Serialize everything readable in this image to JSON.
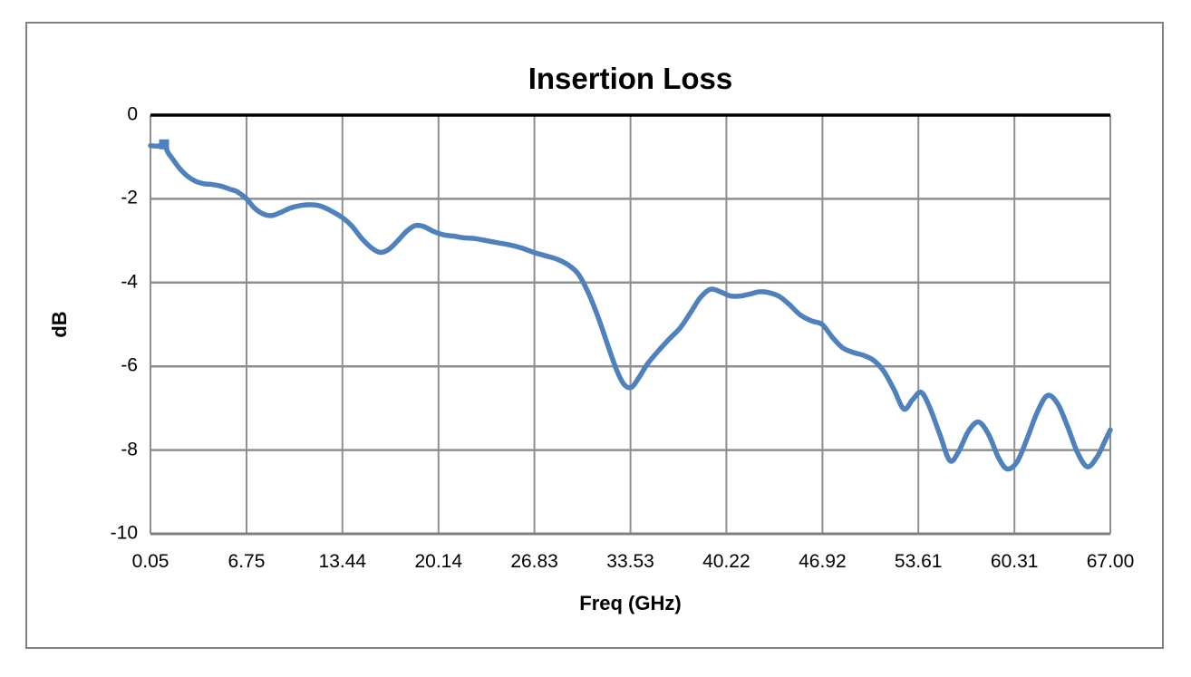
{
  "chart_data": {
    "type": "line",
    "title": "Insertion Loss",
    "xlabel": "Freq (GHz)",
    "ylabel": "dB",
    "xlim": [
      0.05,
      67.0
    ],
    "ylim": [
      -10,
      0
    ],
    "x_ticks": [
      0.05,
      6.75,
      13.44,
      20.14,
      26.83,
      33.53,
      40.22,
      46.92,
      53.61,
      60.31,
      67.0
    ],
    "x_tick_labels": [
      "0.05",
      "6.75",
      "13.44",
      "20.14",
      "26.83",
      "33.53",
      "40.22",
      "46.92",
      "53.61",
      "60.31",
      "67.00"
    ],
    "y_ticks": [
      0,
      -2,
      -4,
      -6,
      -8,
      -10
    ],
    "y_tick_labels": [
      "0",
      "-2",
      "-4",
      "-6",
      "-8",
      "-10"
    ],
    "grid": true,
    "legend": false,
    "series": [
      {
        "name": "Insertion Loss",
        "color": "#4F81BD",
        "line_width": 5.5,
        "start_marker": {
          "f": 1.0,
          "dB": -0.7,
          "size": 11
        },
        "points": [
          [
            0.05,
            -0.73
          ],
          [
            0.5,
            -0.74
          ],
          [
            0.9,
            -0.72
          ],
          [
            1.05,
            -0.68
          ],
          [
            1.25,
            -0.88
          ],
          [
            1.6,
            -1.05
          ],
          [
            2.1,
            -1.28
          ],
          [
            2.6,
            -1.45
          ],
          [
            3.2,
            -1.58
          ],
          [
            3.8,
            -1.64
          ],
          [
            4.4,
            -1.66
          ],
          [
            5.0,
            -1.7
          ],
          [
            5.6,
            -1.77
          ],
          [
            6.1,
            -1.83
          ],
          [
            6.75,
            -2.0
          ],
          [
            7.3,
            -2.22
          ],
          [
            7.9,
            -2.36
          ],
          [
            8.5,
            -2.4
          ],
          [
            9.1,
            -2.33
          ],
          [
            9.8,
            -2.22
          ],
          [
            10.5,
            -2.16
          ],
          [
            11.2,
            -2.14
          ],
          [
            11.9,
            -2.17
          ],
          [
            12.6,
            -2.28
          ],
          [
            13.4,
            -2.44
          ],
          [
            14.1,
            -2.65
          ],
          [
            14.8,
            -2.95
          ],
          [
            15.5,
            -3.18
          ],
          [
            16.1,
            -3.28
          ],
          [
            16.7,
            -3.2
          ],
          [
            17.3,
            -3.0
          ],
          [
            17.9,
            -2.78
          ],
          [
            18.5,
            -2.64
          ],
          [
            19.1,
            -2.66
          ],
          [
            19.8,
            -2.78
          ],
          [
            20.5,
            -2.86
          ],
          [
            21.2,
            -2.89
          ],
          [
            21.9,
            -2.93
          ],
          [
            22.7,
            -2.95
          ],
          [
            23.5,
            -3.0
          ],
          [
            24.3,
            -3.05
          ],
          [
            25.1,
            -3.1
          ],
          [
            25.9,
            -3.17
          ],
          [
            26.8,
            -3.28
          ],
          [
            27.6,
            -3.36
          ],
          [
            28.4,
            -3.44
          ],
          [
            29.2,
            -3.58
          ],
          [
            29.9,
            -3.8
          ],
          [
            30.6,
            -4.25
          ],
          [
            31.3,
            -4.85
          ],
          [
            32.0,
            -5.55
          ],
          [
            32.6,
            -6.12
          ],
          [
            33.1,
            -6.44
          ],
          [
            33.6,
            -6.5
          ],
          [
            34.1,
            -6.28
          ],
          [
            34.7,
            -5.95
          ],
          [
            35.4,
            -5.66
          ],
          [
            36.2,
            -5.36
          ],
          [
            37.0,
            -5.08
          ],
          [
            37.7,
            -4.73
          ],
          [
            38.4,
            -4.36
          ],
          [
            39.1,
            -4.16
          ],
          [
            39.8,
            -4.22
          ],
          [
            40.5,
            -4.32
          ],
          [
            41.2,
            -4.32
          ],
          [
            41.9,
            -4.27
          ],
          [
            42.5,
            -4.22
          ],
          [
            43.2,
            -4.24
          ],
          [
            43.9,
            -4.33
          ],
          [
            44.6,
            -4.52
          ],
          [
            45.4,
            -4.78
          ],
          [
            46.2,
            -4.92
          ],
          [
            46.9,
            -5.0
          ],
          [
            47.6,
            -5.3
          ],
          [
            48.3,
            -5.55
          ],
          [
            49.0,
            -5.66
          ],
          [
            49.8,
            -5.74
          ],
          [
            50.5,
            -5.86
          ],
          [
            51.2,
            -6.12
          ],
          [
            51.9,
            -6.55
          ],
          [
            52.6,
            -7.02
          ],
          [
            53.2,
            -6.8
          ],
          [
            53.8,
            -6.62
          ],
          [
            54.4,
            -6.98
          ],
          [
            55.1,
            -7.62
          ],
          [
            55.8,
            -8.25
          ],
          [
            56.4,
            -8.05
          ],
          [
            57.1,
            -7.55
          ],
          [
            57.8,
            -7.33
          ],
          [
            58.5,
            -7.62
          ],
          [
            59.2,
            -8.18
          ],
          [
            59.8,
            -8.45
          ],
          [
            60.5,
            -8.28
          ],
          [
            61.2,
            -7.72
          ],
          [
            61.9,
            -7.1
          ],
          [
            62.6,
            -6.7
          ],
          [
            63.3,
            -6.88
          ],
          [
            64.0,
            -7.42
          ],
          [
            64.7,
            -8.05
          ],
          [
            65.4,
            -8.4
          ],
          [
            66.1,
            -8.15
          ],
          [
            66.6,
            -7.8
          ],
          [
            67.0,
            -7.52
          ]
        ]
      }
    ]
  },
  "colors": {
    "series": "#4F81BD",
    "gridline": "#8F8F8F",
    "bottom_axis": "#7F7F7F",
    "zero_axis": "#000000",
    "frame_border": "#808080",
    "background": "#FFFFFF"
  }
}
